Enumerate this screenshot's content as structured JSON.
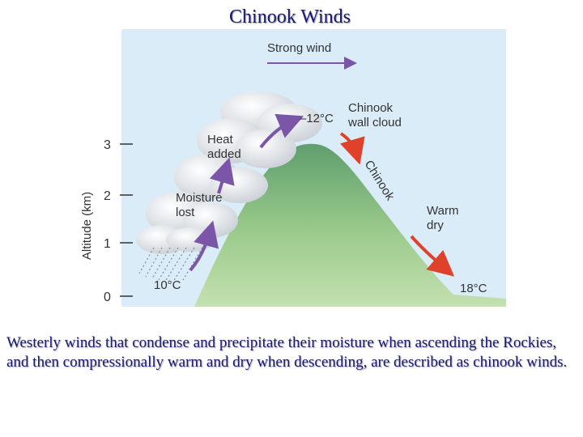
{
  "title": "Chinook Winds",
  "diagram": {
    "strong_wind": "Strong wind",
    "heat_added": [
      "Heat",
      "added"
    ],
    "moisture_lost": [
      "Moisture",
      "lost"
    ],
    "chinook_wall_cloud": [
      "Chinook",
      "wall cloud"
    ],
    "chinook": "Chinook",
    "warm_dry": [
      "Warm",
      "dry"
    ],
    "temp_top": "–12°C",
    "temp_base": "10°C",
    "temp_lee": "18°C",
    "y_axis_label": "Altitude (km)",
    "y_ticks": [
      "0",
      "1",
      "2",
      "3"
    ],
    "colors": {
      "sky": "#d9ecf8",
      "mountain": "#8fc495",
      "ascent_arrow": "#7a55a8",
      "descent_arrow": "#e0412b",
      "wind_arrow": "#7a55a8"
    }
  },
  "caption": "Westerly winds that condense and precipitate their moisture when ascending the Rockies, and then compressionally warm and dry when descending, are described as chinook winds."
}
